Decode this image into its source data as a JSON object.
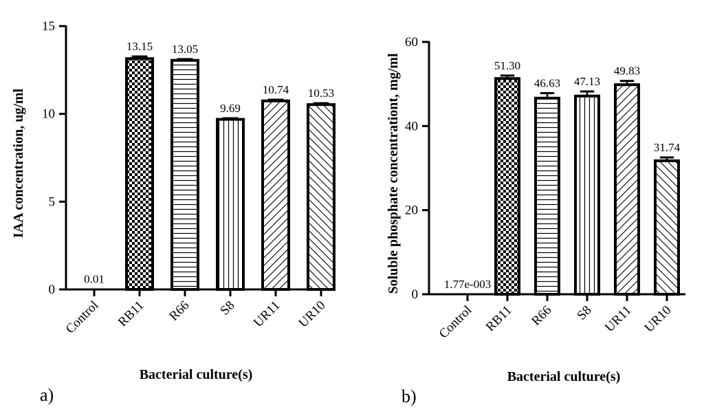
{
  "chart_data": [
    {
      "panel_label": "a)",
      "type": "bar",
      "categories": [
        "Control",
        "RB11",
        "R66",
        "S8",
        "UR11",
        "UR10"
      ],
      "values": [
        0.01,
        13.15,
        13.05,
        9.69,
        10.74,
        10.53
      ],
      "value_labels": [
        "0.01",
        "13.15",
        "13.05",
        "9.69",
        "10.74",
        "10.53"
      ],
      "errors": [
        0,
        0.12,
        0.07,
        0.06,
        0.07,
        0.08
      ],
      "patterns": [
        "none",
        "checker",
        "horizontal",
        "vertical",
        "diagonal-up",
        "diagonal-down"
      ],
      "xlabel": "Bacterial culture(s)",
      "ylabel": "IAA concentration, ug/ml",
      "ylim": [
        0,
        15
      ],
      "yticks": [
        0,
        5,
        10,
        15
      ]
    },
    {
      "panel_label": "b)",
      "type": "bar",
      "categories": [
        "Control",
        "RB11",
        "R66",
        "S8",
        "UR11",
        "UR10"
      ],
      "values": [
        0.00177,
        51.3,
        46.63,
        47.13,
        49.83,
        31.74
      ],
      "value_labels": [
        "1.77e-003",
        "51.30",
        "46.63",
        "47.13",
        "49.83",
        "31.74"
      ],
      "errors": [
        0,
        0.7,
        1.2,
        1.1,
        0.9,
        0.8
      ],
      "patterns": [
        "none",
        "checker",
        "horizontal",
        "vertical",
        "diagonal-up",
        "diagonal-down"
      ],
      "xlabel": "Bacterial culture(s)",
      "ylabel": "Soluble phosphate concentrationt, mg/ml",
      "ylim": [
        0,
        60
      ],
      "yticks": [
        0,
        20,
        40,
        60
      ]
    }
  ]
}
